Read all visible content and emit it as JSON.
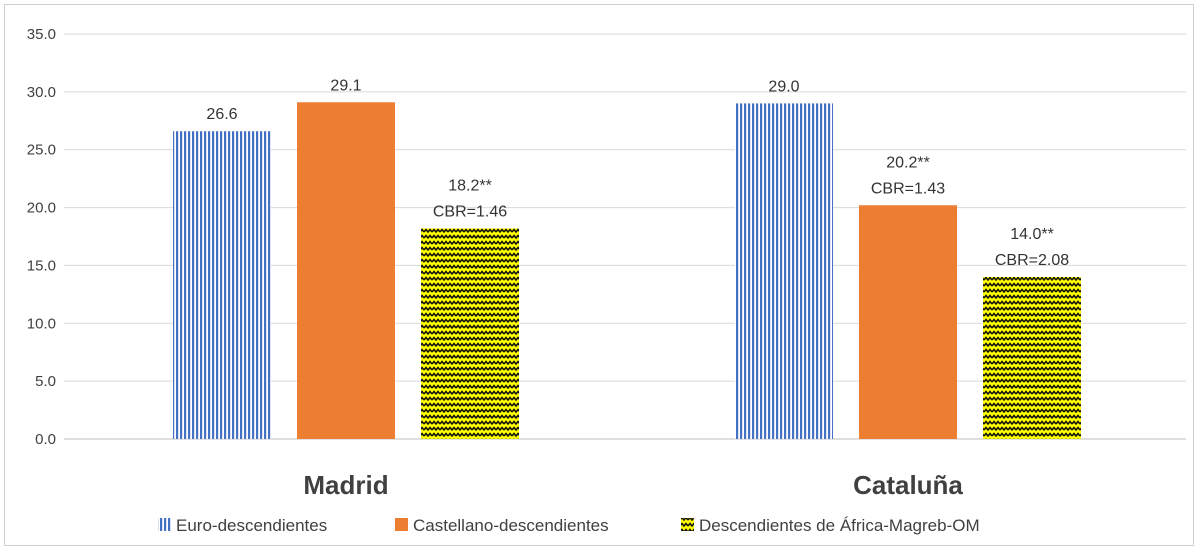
{
  "chart_data": {
    "type": "bar",
    "categories": [
      "Madrid",
      "Cataluña"
    ],
    "ylim": [
      0,
      35
    ],
    "yticks": [
      "0.0",
      "5.0",
      "10.0",
      "15.0",
      "20.0",
      "25.0",
      "30.0",
      "35.0"
    ],
    "grid": true,
    "legend_position": "bottom",
    "series": [
      {
        "name": "Euro-descendientes",
        "color": "#4472c4",
        "pattern": "vertical-lines",
        "values": [
          26.6,
          29.0
        ],
        "labels": [
          [
            "26.6"
          ],
          [
            "29.0"
          ]
        ]
      },
      {
        "name": "Castellano-descendientes",
        "color": "#ed7d31",
        "pattern": "solid",
        "values": [
          29.1,
          20.2
        ],
        "labels": [
          [
            "29.1"
          ],
          [
            "20.2**",
            "CBR=1.43"
          ]
        ]
      },
      {
        "name": "Descendientes de África-Magreb-OM",
        "color": "#ffff00",
        "pattern": "black-zigzag",
        "values": [
          18.2,
          14.0
        ],
        "labels": [
          [
            "18.2**",
            "CBR=1.46"
          ],
          [
            "14.0**",
            "CBR=2.08"
          ]
        ]
      }
    ]
  }
}
